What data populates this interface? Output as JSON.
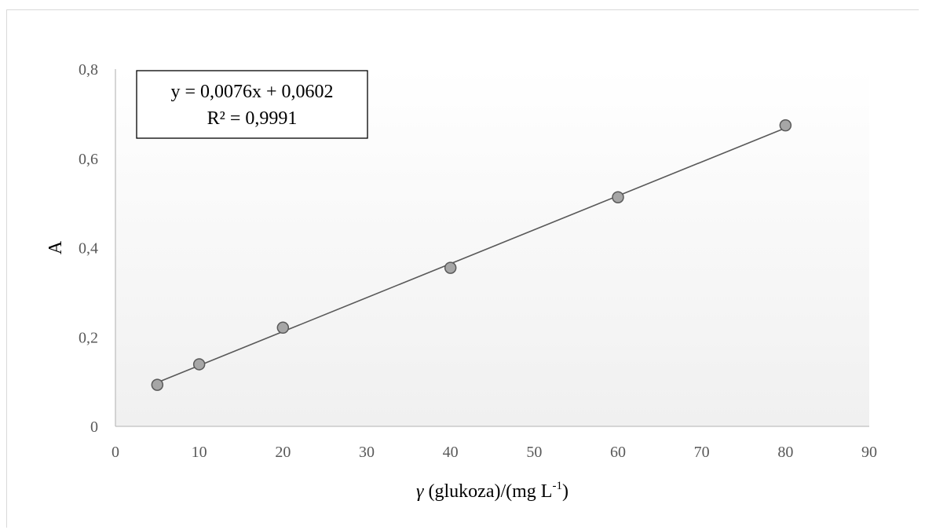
{
  "chart_data": {
    "type": "scatter",
    "x": [
      5,
      10,
      20,
      40,
      60,
      80
    ],
    "y": [
      0.093,
      0.139,
      0.221,
      0.355,
      0.513,
      0.674
    ],
    "xlabel_prefix": "γ",
    "xlabel_main": " (glukoza)/(mg L",
    "xlabel_sup": "-1",
    "xlabel_suffix": ")",
    "ylabel": "A",
    "xlim": [
      0,
      90
    ],
    "ylim": [
      0,
      0.8
    ],
    "x_ticks": [
      "0",
      "10",
      "20",
      "30",
      "40",
      "50",
      "60",
      "70",
      "80",
      "90"
    ],
    "y_ticks": [
      "0",
      "0,2",
      "0,4",
      "0,6",
      "0,8"
    ],
    "trendline": {
      "slope": 0.0076,
      "intercept": 0.0602,
      "equation": "y = 0,0076x + 0,0602",
      "r_squared": "R² = 0,9991"
    },
    "grid": false,
    "legend": "none",
    "colors": {
      "marker_fill": "#a6a6a6",
      "marker_stroke": "#595959",
      "trendline": "#595959",
      "axis": "#bfbfbf",
      "plot_gradient_top": "#ffffff",
      "plot_gradient_bottom": "#f2f2f2"
    }
  }
}
